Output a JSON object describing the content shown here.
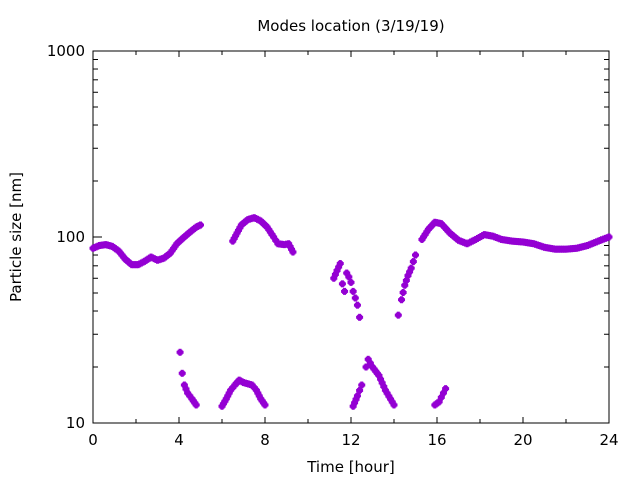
{
  "chart_data": {
    "type": "scatter",
    "title": "Modes location (3/19/19)",
    "xlabel": "Time [hour]",
    "ylabel": "Particle size [nm]",
    "xlim": [
      0,
      24
    ],
    "ylim": [
      10,
      1000
    ],
    "yscale": "log",
    "xticks": [
      "0",
      "4",
      "8",
      "12",
      "16",
      "20",
      "24"
    ],
    "yticks": [
      "10",
      "100",
      "1000"
    ],
    "grid": false,
    "color": "#9400d3",
    "segments": [
      [
        [
          0,
          87
        ],
        [
          0.3,
          90
        ],
        [
          0.6,
          91
        ],
        [
          0.9,
          89
        ],
        [
          1.2,
          84
        ],
        [
          1.5,
          76
        ],
        [
          1.8,
          71
        ],
        [
          2.1,
          71
        ],
        [
          2.4,
          74
        ],
        [
          2.7,
          78
        ],
        [
          3.0,
          75
        ],
        [
          3.3,
          77
        ],
        [
          3.6,
          82
        ],
        [
          3.9,
          92
        ],
        [
          4.2,
          99
        ],
        [
          4.5,
          106
        ],
        [
          4.8,
          113
        ],
        [
          5.0,
          116
        ]
      ],
      [
        [
          6.5,
          95
        ],
        [
          6.7,
          105
        ],
        [
          6.9,
          116
        ],
        [
          7.2,
          124
        ],
        [
          7.5,
          127
        ],
        [
          7.8,
          122
        ],
        [
          8.1,
          113
        ],
        [
          8.4,
          100
        ],
        [
          8.6,
          92
        ],
        [
          8.9,
          91
        ],
        [
          9.1,
          92
        ],
        [
          9.3,
          83
        ]
      ],
      [
        [
          11.2,
          60
        ],
        [
          11.35,
          66
        ],
        [
          11.5,
          72
        ],
        [
          11.6,
          56
        ],
        [
          11.7,
          51
        ],
        [
          11.8,
          64
        ],
        [
          11.9,
          61
        ],
        [
          12.0,
          57
        ],
        [
          12.1,
          51
        ],
        [
          12.2,
          47
        ],
        [
          12.3,
          43
        ],
        [
          12.4,
          37
        ]
      ],
      [
        [
          14.2,
          38
        ],
        [
          14.35,
          46
        ],
        [
          14.5,
          55
        ],
        [
          14.65,
          62
        ],
        [
          14.8,
          68
        ],
        [
          15.0,
          80
        ],
        [
          15.3,
          97
        ],
        [
          15.6,
          110
        ],
        [
          15.9,
          120
        ],
        [
          16.2,
          118
        ],
        [
          16.6,
          105
        ],
        [
          17.0,
          96
        ],
        [
          17.4,
          92
        ],
        [
          17.8,
          97
        ],
        [
          18.2,
          103
        ],
        [
          18.6,
          101
        ],
        [
          19.0,
          97
        ],
        [
          19.5,
          95
        ],
        [
          20.0,
          94
        ],
        [
          20.5,
          92
        ],
        [
          21.0,
          88
        ],
        [
          21.5,
          86
        ],
        [
          22.0,
          86
        ],
        [
          22.5,
          87
        ],
        [
          23.0,
          90
        ],
        [
          23.5,
          95
        ],
        [
          24.0,
          100
        ]
      ],
      [
        [
          4.05,
          24
        ],
        [
          4.15,
          18.5
        ],
        [
          4.25,
          16
        ],
        [
          4.4,
          14.5
        ],
        [
          4.6,
          13.5
        ],
        [
          4.8,
          12.5
        ]
      ],
      [
        [
          6.0,
          12.3
        ],
        [
          6.2,
          13.5
        ],
        [
          6.4,
          15
        ],
        [
          6.6,
          16
        ],
        [
          6.8,
          17
        ],
        [
          7.0,
          16.5
        ],
        [
          7.4,
          16
        ],
        [
          7.6,
          15
        ],
        [
          7.8,
          13.5
        ],
        [
          8.0,
          12.5
        ]
      ],
      [
        [
          12.1,
          12.3
        ],
        [
          12.3,
          14
        ],
        [
          12.5,
          16
        ],
        [
          12.7,
          20
        ],
        [
          12.8,
          22
        ],
        [
          13.0,
          20
        ],
        [
          13.3,
          18
        ],
        [
          13.6,
          15
        ],
        [
          14.0,
          12.5
        ]
      ],
      [
        [
          15.9,
          12.5
        ],
        [
          16.1,
          13
        ],
        [
          16.3,
          14.5
        ],
        [
          16.4,
          15.3
        ]
      ]
    ]
  }
}
